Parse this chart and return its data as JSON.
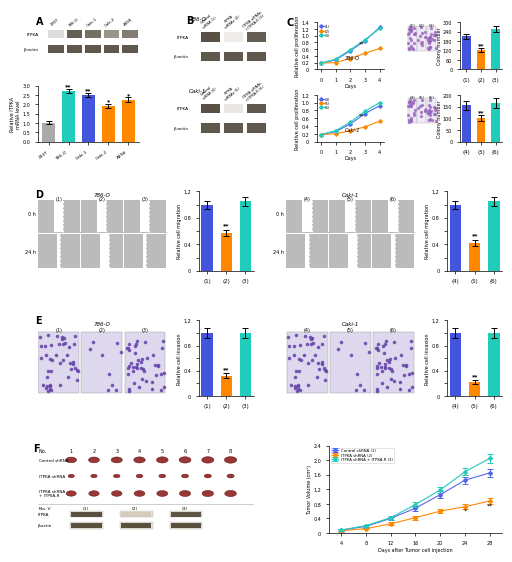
{
  "panel_A": {
    "bar_labels": [
      "293T",
      "786-O",
      "Caki-1",
      "Caki-2",
      "A498"
    ],
    "bar_values": [
      1.0,
      2.7,
      2.5,
      1.9,
      2.25
    ],
    "bar_errors": [
      0.08,
      0.12,
      0.1,
      0.1,
      0.12
    ],
    "bar_colors": [
      "#aaaaaa",
      "#22ccbb",
      "#4455dd",
      "#ff8800",
      "#ff8800"
    ],
    "ylabel": "Relative ITPKA\nmRNA level",
    "ylim": [
      0,
      3.0
    ],
    "yticks": [
      0.0,
      0.5,
      1.0,
      1.5,
      2.0,
      2.5,
      3.0
    ],
    "sig_labels": [
      "",
      "**",
      "**",
      "*",
      "*"
    ]
  },
  "panel_C_786O_line": {
    "days": [
      0,
      1,
      2,
      3,
      4
    ],
    "series_1": [
      0.18,
      0.28,
      0.55,
      0.85,
      1.25
    ],
    "series_2": [
      0.18,
      0.2,
      0.32,
      0.48,
      0.62
    ],
    "series_3": [
      0.18,
      0.3,
      0.58,
      0.88,
      1.22
    ],
    "colors": [
      "#5566ee",
      "#ff8800",
      "#22ccbb"
    ],
    "labels": [
      "(1)",
      "(2)",
      "(3)"
    ],
    "ylabel": "Relative cell proliferation",
    "ylim": [
      0,
      1.4
    ],
    "yticks": [
      0,
      0.2,
      0.4,
      0.6,
      0.8,
      1.0,
      1.2,
      1.4
    ],
    "title": "786-O"
  },
  "panel_C_786O_bar": {
    "labels": [
      "(1)",
      "(2)",
      "(3)"
    ],
    "values": [
      210,
      122,
      258
    ],
    "errors": [
      18,
      12,
      20
    ],
    "colors": [
      "#4455dd",
      "#ff8800",
      "#22ccbb"
    ],
    "ylabel": "Colony number",
    "ylim": [
      0,
      300
    ],
    "yticks": [
      0,
      60,
      120,
      180,
      240,
      300
    ],
    "sig": [
      "",
      "**",
      ""
    ]
  },
  "panel_C_Caki1_line": {
    "days": [
      0,
      1,
      2,
      3,
      4
    ],
    "series_1": [
      0.18,
      0.26,
      0.45,
      0.72,
      0.92
    ],
    "series_2": [
      0.18,
      0.2,
      0.28,
      0.38,
      0.52
    ],
    "series_3": [
      0.18,
      0.28,
      0.5,
      0.78,
      1.0
    ],
    "colors": [
      "#5566ee",
      "#ff8800",
      "#22ccbb"
    ],
    "labels": [
      "(4)",
      "(5)",
      "(6)"
    ],
    "ylabel": "Relative cell proliferation",
    "ylim": [
      0,
      1.2
    ],
    "yticks": [
      0,
      0.2,
      0.4,
      0.6,
      0.8,
      1.0,
      1.2
    ],
    "title": "Caki-1"
  },
  "panel_C_Caki1_bar": {
    "labels": [
      "(4)",
      "(5)",
      "(6)"
    ],
    "values": [
      155,
      100,
      165
    ],
    "errors": [
      20,
      12,
      20
    ],
    "colors": [
      "#4455dd",
      "#ff8800",
      "#22ccbb"
    ],
    "ylabel": "Colony number",
    "ylim": [
      0,
      200
    ],
    "yticks": [
      0,
      50,
      100,
      150,
      200
    ],
    "sig": [
      "",
      "**",
      ""
    ]
  },
  "panel_D_786O_bar": {
    "labels": [
      "(1)",
      "(2)",
      "(3)"
    ],
    "values": [
      1.0,
      0.57,
      1.05
    ],
    "errors": [
      0.06,
      0.05,
      0.07
    ],
    "colors": [
      "#4455dd",
      "#ff8800",
      "#22ccbb"
    ],
    "ylabel": "Relative cell migration",
    "ylim": [
      0,
      1.2
    ],
    "yticks": [
      0,
      0.2,
      0.4,
      0.6,
      0.8,
      1.0,
      1.2
    ],
    "sig": [
      "",
      "**",
      ""
    ]
  },
  "panel_D_Caki1_bar": {
    "labels": [
      "(4)",
      "(5)",
      "(6)"
    ],
    "values": [
      1.0,
      0.42,
      1.05
    ],
    "errors": [
      0.06,
      0.05,
      0.07
    ],
    "colors": [
      "#4455dd",
      "#ff8800",
      "#22ccbb"
    ],
    "ylabel": "Relative cell migration",
    "ylim": [
      0,
      1.2
    ],
    "yticks": [
      0,
      0.2,
      0.4,
      0.6,
      0.8,
      1.0,
      1.2
    ],
    "sig": [
      "",
      "**",
      ""
    ]
  },
  "panel_E_786O_bar": {
    "labels": [
      "(1)",
      "(2)",
      "(3)"
    ],
    "values": [
      1.0,
      0.32,
      1.0
    ],
    "errors": [
      0.08,
      0.04,
      0.08
    ],
    "colors": [
      "#4455dd",
      "#ff8800",
      "#22ccbb"
    ],
    "ylabel": "Relative cell invasion",
    "ylim": [
      0,
      1.2
    ],
    "yticks": [
      0,
      0.2,
      0.4,
      0.6,
      0.8,
      1.0,
      1.2
    ],
    "sig": [
      "",
      "**",
      ""
    ]
  },
  "panel_E_Caki1_bar": {
    "labels": [
      "(4)",
      "(5)",
      "(6)"
    ],
    "values": [
      1.0,
      0.22,
      1.0
    ],
    "errors": [
      0.08,
      0.03,
      0.08
    ],
    "colors": [
      "#4455dd",
      "#ff8800",
      "#22ccbb"
    ],
    "ylabel": "Relative cell invasion",
    "ylim": [
      0,
      1.2
    ],
    "yticks": [
      0,
      0.2,
      0.4,
      0.6,
      0.8,
      1.0,
      1.2
    ],
    "sig": [
      "",
      "**",
      ""
    ]
  },
  "panel_F_line": {
    "days": [
      4,
      8,
      12,
      16,
      20,
      24,
      28
    ],
    "series_1": [
      0.08,
      0.18,
      0.4,
      0.68,
      1.05,
      1.45,
      1.65
    ],
    "series_2": [
      0.06,
      0.12,
      0.25,
      0.42,
      0.6,
      0.72,
      0.88
    ],
    "series_3": [
      0.08,
      0.2,
      0.42,
      0.78,
      1.18,
      1.68,
      2.05
    ],
    "errors_1": [
      0.02,
      0.03,
      0.05,
      0.07,
      0.09,
      0.1,
      0.12
    ],
    "errors_2": [
      0.02,
      0.02,
      0.04,
      0.05,
      0.06,
      0.07,
      0.08
    ],
    "errors_3": [
      0.02,
      0.03,
      0.05,
      0.07,
      0.09,
      0.1,
      0.12
    ],
    "colors": [
      "#5566ee",
      "#ff8800",
      "#22ccbb"
    ],
    "labels": [
      "Control shRNA (1)",
      "ITPKA shRNA (2)",
      "ITPKA shRNA + ITPKA-R (3)"
    ],
    "xlabel": "Days after Tumor cell injection",
    "ylabel": "Tumor Volume (cm³)",
    "ylim": [
      0,
      2.4
    ],
    "yticks": [
      0,
      0.4,
      0.8,
      1.2,
      1.6,
      2.0,
      2.4
    ]
  },
  "blot_bg": "#e8e0d0",
  "band_dark": "#2a2010"
}
